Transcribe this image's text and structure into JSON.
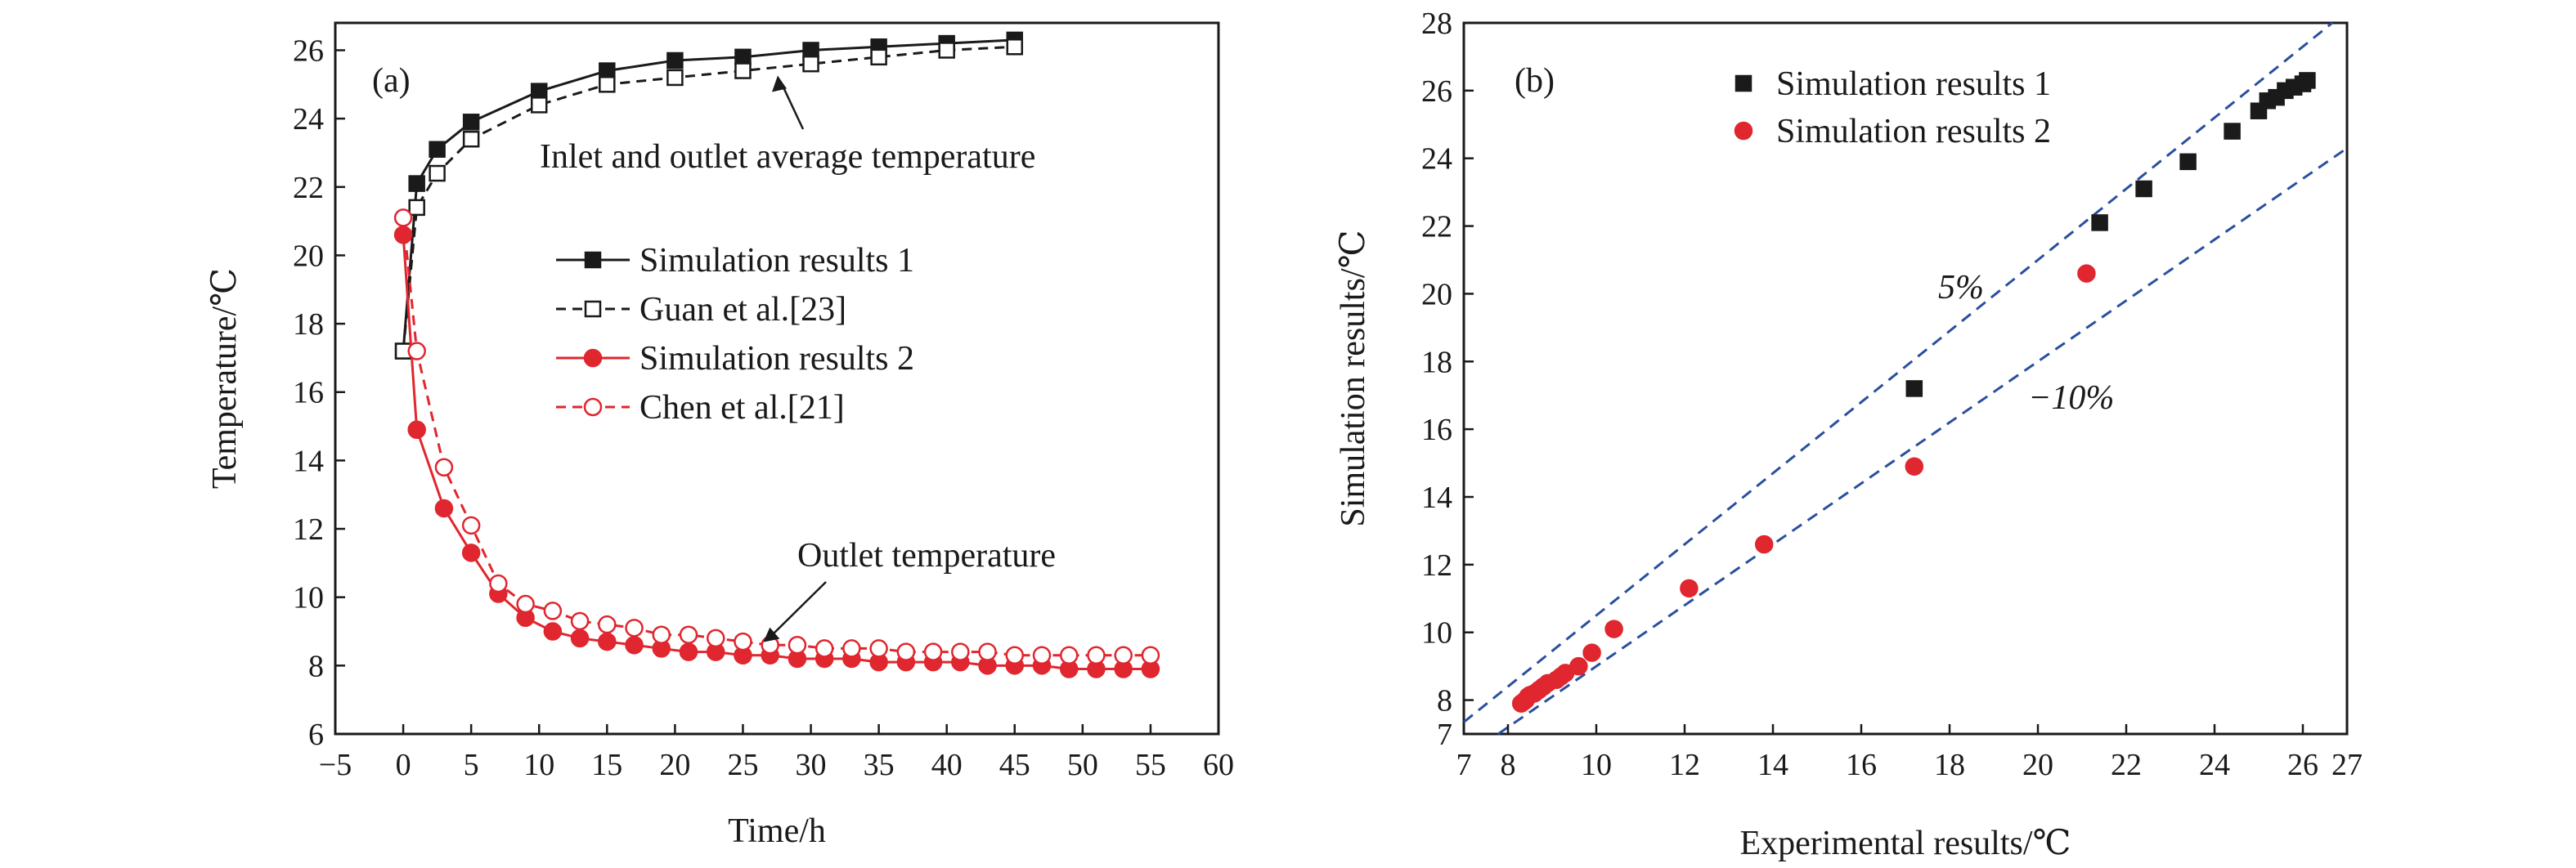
{
  "chart_data": [
    {
      "type": "line",
      "panel_label": "(a)",
      "xlabel": "Time/h",
      "ylabel": "Temperature/℃",
      "xlim": [
        -5,
        60
      ],
      "ylim": [
        6,
        26.8
      ],
      "xticks": [
        -5,
        0,
        5,
        10,
        15,
        20,
        25,
        30,
        35,
        40,
        45,
        50,
        55,
        60
      ],
      "yticks": [
        6,
        8,
        10,
        12,
        14,
        16,
        18,
        20,
        22,
        24,
        26
      ],
      "grid": false,
      "legend_position": "center-right",
      "series": [
        {
          "name": "Simulation results 1",
          "color": "#1a1a1a",
          "dashed": false,
          "marker": "square-filled",
          "x": [
            0,
            1,
            2.5,
            5,
            10,
            15,
            20,
            25,
            30,
            35,
            40,
            45
          ],
          "y": [
            17.2,
            22.1,
            23.1,
            23.9,
            24.8,
            25.4,
            25.7,
            25.8,
            26.0,
            26.1,
            26.2,
            26.3
          ]
        },
        {
          "name": "Guan et al.[23]",
          "color": "#1a1a1a",
          "dashed": true,
          "marker": "square-open",
          "x": [
            0,
            1,
            2.5,
            5,
            10,
            15,
            20,
            25,
            30,
            35,
            40,
            45
          ],
          "y": [
            17.2,
            21.4,
            22.4,
            23.4,
            24.4,
            25.0,
            25.2,
            25.4,
            25.6,
            25.8,
            26.0,
            26.1
          ]
        },
        {
          "name": "Simulation results 2",
          "color": "#e0262e",
          "dashed": false,
          "marker": "circle-filled",
          "x": [
            0,
            1,
            3,
            5,
            7,
            9,
            11,
            13,
            15,
            17,
            19,
            21,
            23,
            25,
            27,
            29,
            31,
            33,
            35,
            37,
            39,
            41,
            43,
            45,
            47,
            49,
            51,
            53,
            55
          ],
          "y": [
            20.6,
            14.9,
            12.6,
            11.3,
            10.1,
            9.4,
            9.0,
            8.8,
            8.7,
            8.6,
            8.5,
            8.4,
            8.4,
            8.3,
            8.3,
            8.2,
            8.2,
            8.2,
            8.1,
            8.1,
            8.1,
            8.1,
            8.0,
            8.0,
            8.0,
            7.9,
            7.9,
            7.9,
            7.9
          ]
        },
        {
          "name": "Chen et al.[21]",
          "color": "#e0262e",
          "dashed": true,
          "marker": "circle-open",
          "x": [
            0,
            1,
            3,
            5,
            7,
            9,
            11,
            13,
            15,
            17,
            19,
            21,
            23,
            25,
            27,
            29,
            31,
            33,
            35,
            37,
            39,
            41,
            43,
            45,
            47,
            49,
            51,
            53,
            55
          ],
          "y": [
            21.1,
            17.2,
            13.8,
            12.1,
            10.4,
            9.8,
            9.6,
            9.3,
            9.2,
            9.1,
            8.9,
            8.9,
            8.8,
            8.7,
            8.6,
            8.6,
            8.5,
            8.5,
            8.5,
            8.4,
            8.4,
            8.4,
            8.4,
            8.3,
            8.3,
            8.3,
            8.3,
            8.3,
            8.3
          ]
        }
      ],
      "annotations": [
        {
          "text": "Inlet and outlet average temperature",
          "arrow_to": [
            27.5,
            25.4
          ]
        },
        {
          "text": "Outlet temperature",
          "arrow_to": [
            26.5,
            8.4
          ]
        }
      ]
    },
    {
      "type": "scatter",
      "panel_label": "(b)",
      "xlabel": "Experimental results/℃",
      "ylabel": "Simulation results/℃",
      "xlim": [
        7,
        27
      ],
      "ylim": [
        7,
        28
      ],
      "xticks": [
        7,
        8,
        10,
        12,
        14,
        16,
        18,
        20,
        22,
        24,
        26,
        27
      ],
      "yticks": [
        7,
        8,
        10,
        12,
        14,
        16,
        18,
        20,
        22,
        24,
        26,
        28
      ],
      "grid": false,
      "legend_position": "top-center",
      "series": [
        {
          "name": "Simulation results 1",
          "color": "#1a1a1a",
          "marker": "square-filled",
          "x": [
            17.2,
            21.4,
            22.4,
            23.4,
            24.4,
            25.0,
            25.2,
            25.4,
            25.6,
            25.8,
            26.0,
            26.1
          ],
          "y": [
            17.2,
            22.1,
            23.1,
            23.9,
            24.8,
            25.4,
            25.7,
            25.8,
            26.0,
            26.1,
            26.2,
            26.3
          ]
        },
        {
          "name": "Simulation results 2",
          "color": "#e0262e",
          "marker": "circle-filled",
          "x": [
            21.1,
            17.2,
            13.8,
            12.1,
            10.4,
            9.9,
            9.6,
            9.3,
            9.2,
            9.1,
            8.9,
            8.8,
            8.7,
            8.6,
            8.5,
            8.45,
            8.4,
            8.35,
            8.3
          ],
          "y": [
            20.6,
            14.9,
            12.6,
            11.3,
            10.1,
            9.4,
            9.0,
            8.8,
            8.7,
            8.6,
            8.5,
            8.4,
            8.3,
            8.2,
            8.15,
            8.1,
            8.0,
            7.95,
            7.9
          ]
        }
      ],
      "reference_lines": [
        {
          "label": "5%",
          "factor": 1.05,
          "color": "#2a4f9e",
          "dashed": true
        },
        {
          "label": "−10%",
          "factor": 0.9,
          "color": "#2a4f9e",
          "dashed": true
        }
      ]
    }
  ]
}
